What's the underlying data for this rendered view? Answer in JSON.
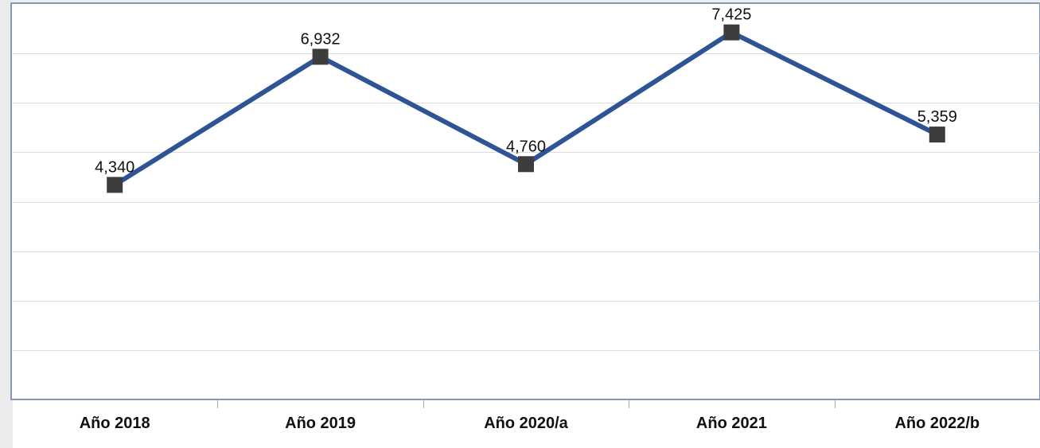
{
  "chart_data": {
    "type": "line",
    "categories": [
      "Año 2018",
      "Año 2019",
      "Año 2020/a",
      "Año 2021",
      "Año 2022/b"
    ],
    "series": [
      {
        "values": [
          4340,
          6932,
          4760,
          7425,
          5359
        ],
        "labels": [
          "4,340",
          "6,932",
          "4,760",
          "7,425",
          "5,359"
        ],
        "color": "#2f5496",
        "marker": "square",
        "marker_color": "#3d3d3d"
      }
    ],
    "ylim": [
      0,
      8000
    ],
    "gridlines": true,
    "legend": "none"
  }
}
